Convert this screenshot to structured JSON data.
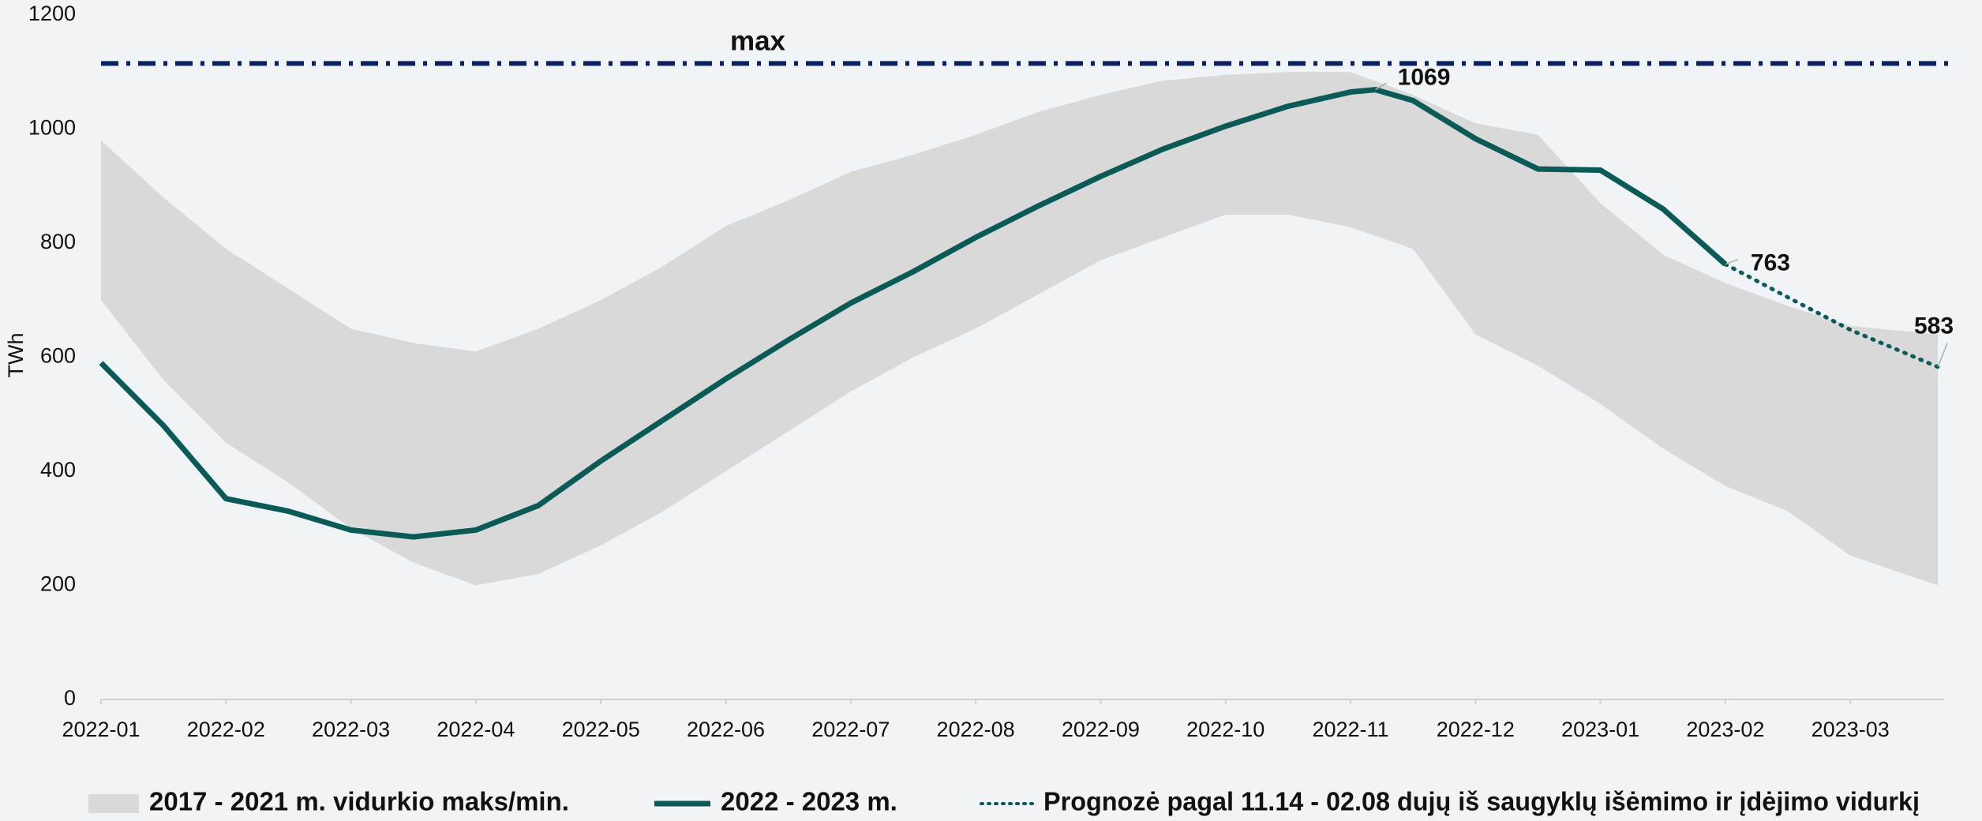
{
  "chart_data": {
    "type": "line",
    "y_label": "TWh",
    "ylim": [
      0,
      1200
    ],
    "yticks": [
      0,
      200,
      400,
      600,
      800,
      1000,
      1200
    ],
    "xlim": [
      0,
      14.75
    ],
    "xticks": [
      {
        "value": 0,
        "label": "2022-01"
      },
      {
        "value": 1,
        "label": "2022-02"
      },
      {
        "value": 2,
        "label": "2022-03"
      },
      {
        "value": 3,
        "label": "2022-04"
      },
      {
        "value": 4,
        "label": "2022-05"
      },
      {
        "value": 5,
        "label": "2022-06"
      },
      {
        "value": 6,
        "label": "2022-07"
      },
      {
        "value": 7,
        "label": "2022-08"
      },
      {
        "value": 8,
        "label": "2022-09"
      },
      {
        "value": 9,
        "label": "2022-10"
      },
      {
        "value": 10,
        "label": "2022-11"
      },
      {
        "value": 11,
        "label": "2022-12"
      },
      {
        "value": 12,
        "label": "2023-01"
      },
      {
        "value": 13,
        "label": "2023-02"
      },
      {
        "value": 14,
        "label": "2023-03"
      }
    ],
    "reference_lines": [
      {
        "label": "max",
        "value": 1115,
        "color": "#0d2161"
      }
    ],
    "series": [
      {
        "name": "2017 - 2021 m. vidurkio maks/min.",
        "type": "band",
        "color": "#d9d9d9",
        "x": [
          0,
          0.5,
          1,
          1.5,
          2,
          2.5,
          3,
          3.5,
          4,
          4.5,
          5,
          5.5,
          6,
          6.5,
          7,
          7.5,
          8,
          8.5,
          9,
          9.5,
          10,
          10.5,
          11,
          11.5,
          12,
          12.5,
          13,
          13.5,
          14,
          14.7
        ],
        "high": [
          980,
          880,
          790,
          720,
          650,
          625,
          610,
          650,
          700,
          760,
          830,
          875,
          925,
          955,
          990,
          1030,
          1060,
          1085,
          1095,
          1100,
          1100,
          1060,
          1010,
          990,
          870,
          780,
          730,
          690,
          655,
          640
        ],
        "low": [
          700,
          560,
          450,
          380,
          300,
          240,
          200,
          220,
          270,
          330,
          400,
          470,
          540,
          600,
          650,
          710,
          770,
          810,
          850,
          850,
          828,
          790,
          640,
          585,
          518,
          440,
          374,
          330,
          252,
          200
        ]
      },
      {
        "name": "2022 - 2023 m.",
        "type": "line",
        "color": "#0b5a57",
        "x": [
          0,
          0.5,
          1,
          1.5,
          2,
          2.5,
          3,
          3.5,
          4,
          4.5,
          5,
          5.5,
          6,
          6.5,
          7,
          7.5,
          8,
          8.5,
          9,
          9.5,
          10,
          10.2,
          10.5,
          11,
          11.5,
          12,
          12.5,
          13
        ],
        "values": [
          590,
          480,
          352,
          330,
          297,
          285,
          297,
          340,
          418,
          490,
          562,
          630,
          695,
          750,
          810,
          865,
          917,
          965,
          1005,
          1040,
          1065,
          1069,
          1050,
          983,
          930,
          928,
          860,
          763
        ]
      },
      {
        "name": "Prognozė pagal 11.14 - 02.08 dujų iš saugyklų išėmimo ir įdėjimo vidurkį",
        "type": "dotted",
        "color": "#0b5a57",
        "x": [
          13,
          13.5,
          14,
          14.7
        ],
        "values": [
          763,
          705,
          648,
          583
        ]
      }
    ]
  }
}
